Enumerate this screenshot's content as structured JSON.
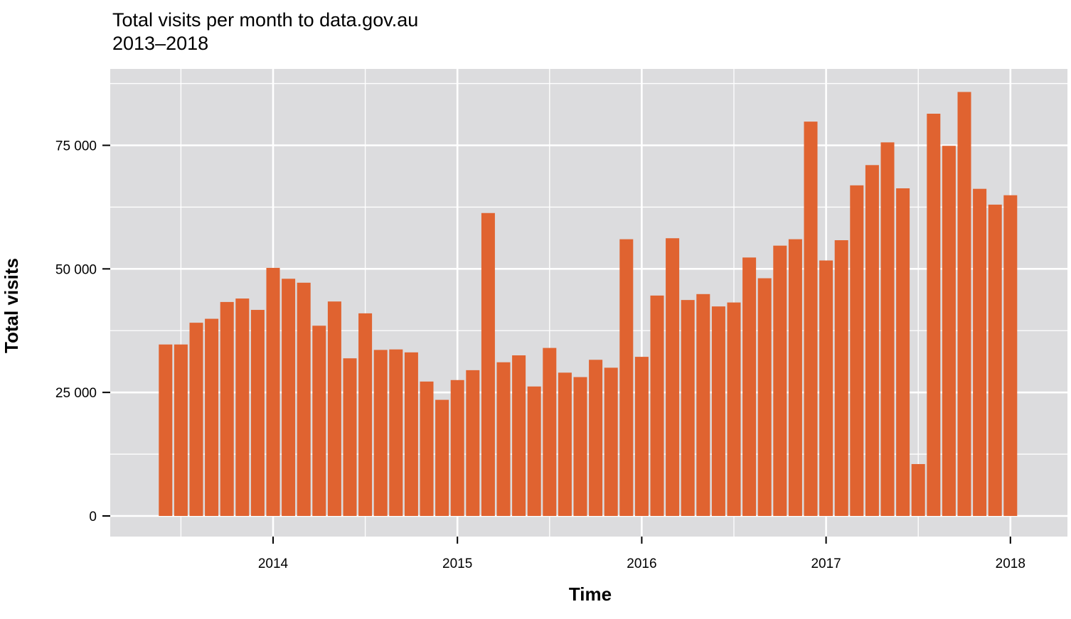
{
  "chart_data": {
    "type": "bar",
    "title": "Total visits per month to data.gov.au",
    "subtitle": "2013–2018",
    "xlabel": "Time",
    "ylabel": "Total visits",
    "ylim": [
      0,
      88000
    ],
    "yticks": [
      0,
      25000,
      50000,
      75000
    ],
    "ytick_labels": [
      "0",
      "25 000",
      "50 000",
      "75 000"
    ],
    "xticks": [
      "2014",
      "2015",
      "2016",
      "2017",
      "2018"
    ],
    "grid": true,
    "bar_color": "#e06330",
    "panel_color": "#dcdcde",
    "categories": [
      "2013-06",
      "2013-07",
      "2013-08",
      "2013-09",
      "2013-10",
      "2013-11",
      "2013-12",
      "2014-01",
      "2014-02",
      "2014-03",
      "2014-04",
      "2014-05",
      "2014-06",
      "2014-07",
      "2014-08",
      "2014-09",
      "2014-10",
      "2014-11",
      "2014-12",
      "2015-01",
      "2015-02",
      "2015-03",
      "2015-04",
      "2015-05",
      "2015-06",
      "2015-07",
      "2015-08",
      "2015-09",
      "2015-10",
      "2015-11",
      "2015-12",
      "2016-01",
      "2016-02",
      "2016-03",
      "2016-04",
      "2016-05",
      "2016-06",
      "2016-07",
      "2016-08",
      "2016-09",
      "2016-10",
      "2016-11",
      "2016-12",
      "2017-01",
      "2017-02",
      "2017-03",
      "2017-04",
      "2017-05",
      "2017-06",
      "2017-07",
      "2017-08",
      "2017-09",
      "2017-10",
      "2017-11",
      "2017-12",
      "2018-01"
    ],
    "values": [
      34700,
      34700,
      39100,
      39900,
      43300,
      44000,
      41700,
      50200,
      48000,
      47200,
      38500,
      43400,
      31900,
      41000,
      33600,
      33700,
      33100,
      27200,
      23500,
      27500,
      29500,
      61300,
      31100,
      32500,
      26200,
      34000,
      29000,
      28100,
      31600,
      30000,
      56000,
      32200,
      44600,
      56200,
      43700,
      44900,
      42400,
      43200,
      52300,
      48100,
      54700,
      56000,
      79800,
      51700,
      55800,
      66900,
      71000,
      75600,
      66300,
      10500,
      81400,
      74900,
      85800,
      66200,
      63000,
      64900
    ]
  }
}
